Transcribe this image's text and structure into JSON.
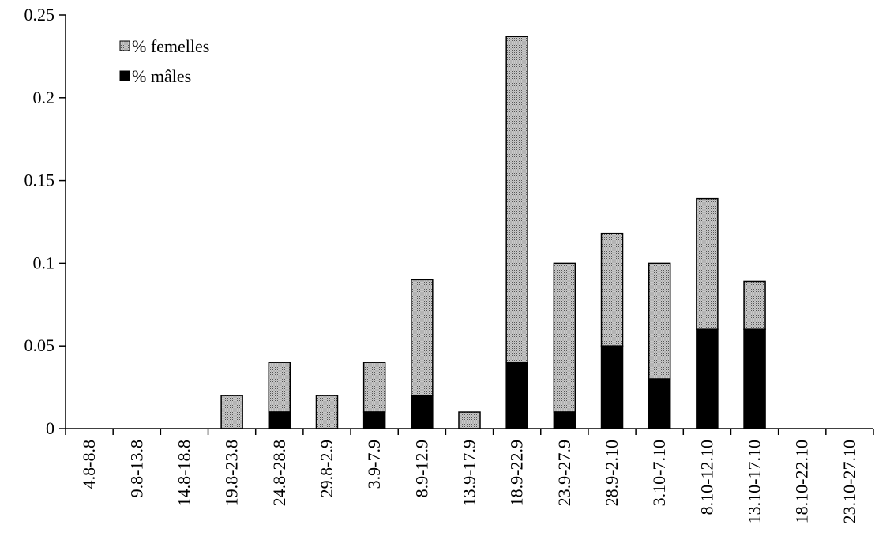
{
  "chart_data": {
    "type": "bar",
    "stacked": true,
    "categories": [
      "4.8-8.8",
      "9.8-13.8",
      "14.8-18.8",
      "19.8-23.8",
      "24.8-28.8",
      "29.8-2.9",
      "3.9-7.9",
      "8.9-12.9",
      "13.9-17.9",
      "18.9-22.9",
      "23.9-27.9",
      "28.9-2.10",
      "3.10-7.10",
      "8.10-12.10",
      "13.10-17.10",
      "18.10-22.10",
      "23.10-27.10"
    ],
    "series": [
      {
        "name": "% mâles",
        "color": "#000000",
        "values": [
          0,
          0,
          0,
          0,
          0.01,
          0,
          0.01,
          0.02,
          0,
          0.04,
          0.01,
          0.05,
          0.03,
          0.06,
          0.06,
          0,
          0
        ]
      },
      {
        "name": "% femelles",
        "color": "#a0a0a0",
        "pattern": "dotted-gray",
        "values": [
          0,
          0,
          0,
          0.02,
          0.03,
          0.02,
          0.03,
          0.07,
          0.01,
          0.197,
          0.09,
          0.068,
          0.07,
          0.079,
          0.029,
          0,
          0
        ]
      }
    ],
    "ylim": [
      0,
      0.25
    ],
    "yticks": [
      "0",
      "0.05",
      "0.1",
      "0.15",
      "0.2",
      "0.25"
    ],
    "ytick_values": [
      0,
      0.05,
      0.1,
      0.15,
      0.2,
      0.25
    ],
    "legend": {
      "placement": "top-left",
      "items": [
        {
          "label": "% femelles",
          "series": 1
        },
        {
          "label": "% mâles",
          "series": 0
        }
      ]
    },
    "grid": false
  }
}
